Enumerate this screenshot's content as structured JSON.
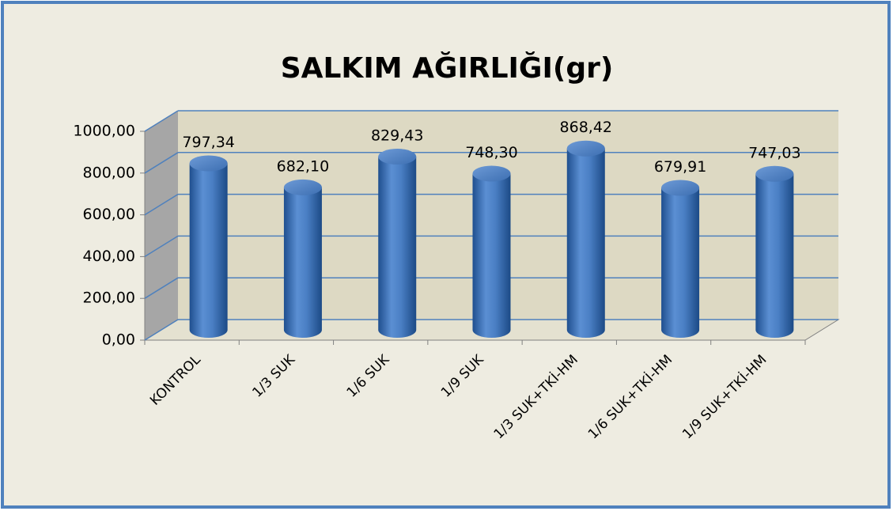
{
  "chart_data": {
    "type": "bar",
    "title": "SALKIM AĞIRLIĞI(gr)",
    "categories": [
      "KONTROL",
      "1/3 SUK",
      "1/6 SUK",
      "1/9 SUK",
      "1/3 SUK+TKİ-HM",
      "1/6 SUK+TKİ-HM",
      "1/9 SUK+TKİ-HM"
    ],
    "values": [
      797.34,
      682.1,
      829.43,
      748.3,
      868.42,
      679.91,
      747.03
    ],
    "value_labels": [
      "797,34",
      "682,10",
      "829,43",
      "748,30",
      "868,42",
      "679,91",
      "747,03"
    ],
    "color": "#4f81bd",
    "ylim": [
      0,
      1000
    ],
    "yticks": [
      {
        "value": 0,
        "label": "0,00"
      },
      {
        "value": 200,
        "label": "200,00"
      },
      {
        "value": 400,
        "label": "400,00"
      },
      {
        "value": 600,
        "label": "600,00"
      },
      {
        "value": 800,
        "label": "800,00"
      },
      {
        "value": 1000,
        "label": "1000,00"
      }
    ],
    "grid": true
  }
}
